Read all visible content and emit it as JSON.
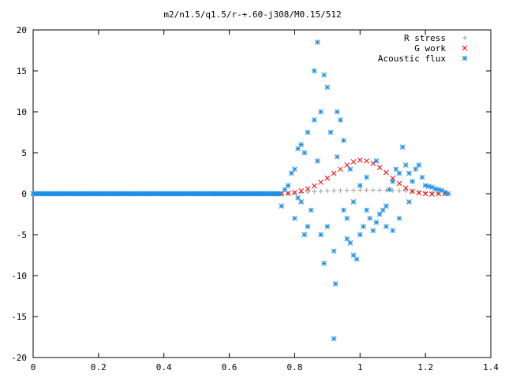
{
  "chart_data": {
    "type": "scatter",
    "title": "m2/n1.5/q1.5/r-+.60-j308/M0.15/512",
    "xlabel": "",
    "ylabel": "",
    "xlim": [
      0,
      1.4
    ],
    "ylim": [
      -20,
      20
    ],
    "x_ticks": [
      0,
      0.2,
      0.4,
      0.6,
      0.8,
      1,
      1.2,
      1.4
    ],
    "x_tick_labels": [
      "0",
      "0.2",
      "0.4",
      "0.6",
      "0.8",
      "1",
      "1.2",
      "1.4"
    ],
    "y_ticks": [
      -20,
      -15,
      -10,
      -5,
      0,
      5,
      10,
      15,
      20
    ],
    "y_tick_labels": [
      "-20",
      "-15",
      "-10",
      "-5",
      "0",
      "5",
      "10",
      "15",
      "20"
    ],
    "grid": false,
    "legend_position": "top-right",
    "series": [
      {
        "name": "R stress",
        "marker": "plus",
        "color": "#a0a0a0",
        "points": [
          [
            0.76,
            0.0
          ],
          [
            0.78,
            0.05
          ],
          [
            0.8,
            0.1
          ],
          [
            0.82,
            0.15
          ],
          [
            0.84,
            0.2
          ],
          [
            0.86,
            0.25
          ],
          [
            0.88,
            0.3
          ],
          [
            0.9,
            0.35
          ],
          [
            0.92,
            0.38
          ],
          [
            0.94,
            0.4
          ],
          [
            0.96,
            0.42
          ],
          [
            0.98,
            0.43
          ],
          [
            1.0,
            0.44
          ],
          [
            1.02,
            0.44
          ],
          [
            1.04,
            0.44
          ],
          [
            1.06,
            0.43
          ],
          [
            1.08,
            0.42
          ],
          [
            1.1,
            0.4
          ],
          [
            1.12,
            0.37
          ],
          [
            1.14,
            0.33
          ],
          [
            1.16,
            0.28
          ],
          [
            1.18,
            0.22
          ],
          [
            1.2,
            0.16
          ],
          [
            1.22,
            0.1
          ],
          [
            1.24,
            0.05
          ],
          [
            1.26,
            0.02
          ]
        ]
      },
      {
        "name": "G work",
        "marker": "cross",
        "color": "#ff0000",
        "points": [
          [
            0.76,
            0.0
          ],
          [
            0.78,
            0.05
          ],
          [
            0.8,
            0.15
          ],
          [
            0.82,
            0.35
          ],
          [
            0.84,
            0.6
          ],
          [
            0.86,
            0.95
          ],
          [
            0.88,
            1.4
          ],
          [
            0.9,
            1.9
          ],
          [
            0.92,
            2.5
          ],
          [
            0.94,
            3.0
          ],
          [
            0.96,
            3.5
          ],
          [
            0.98,
            3.9
          ],
          [
            1.0,
            4.1
          ],
          [
            1.02,
            4.0
          ],
          [
            1.04,
            3.7
          ],
          [
            1.06,
            3.2
          ],
          [
            1.08,
            2.6
          ],
          [
            1.1,
            1.9
          ],
          [
            1.12,
            1.25
          ],
          [
            1.14,
            0.7
          ],
          [
            1.16,
            0.3
          ],
          [
            1.18,
            0.1
          ],
          [
            1.2,
            0.0
          ],
          [
            1.22,
            -0.05
          ],
          [
            1.24,
            0.0
          ],
          [
            1.26,
            0.0
          ]
        ]
      },
      {
        "name": "Acoustic flux",
        "marker": "star",
        "color": "#1e8ee6",
        "points": [
          [
            0.0,
            0.0
          ],
          [
            0.05,
            0.0
          ],
          [
            0.1,
            0.0
          ],
          [
            0.15,
            0.0
          ],
          [
            0.2,
            0.0
          ],
          [
            0.25,
            0.0
          ],
          [
            0.3,
            0.0
          ],
          [
            0.35,
            0.0
          ],
          [
            0.4,
            0.0
          ],
          [
            0.45,
            0.0
          ],
          [
            0.5,
            0.0
          ],
          [
            0.55,
            0.0
          ],
          [
            0.6,
            0.0
          ],
          [
            0.65,
            0.0
          ],
          [
            0.7,
            0.0
          ],
          [
            0.74,
            0.0
          ],
          [
            0.76,
            -1.5
          ],
          [
            0.77,
            0.5
          ],
          [
            0.78,
            1.0
          ],
          [
            0.79,
            2.5
          ],
          [
            0.8,
            3.0
          ],
          [
            0.81,
            5.5
          ],
          [
            0.82,
            6.0
          ],
          [
            0.83,
            5.0
          ],
          [
            0.81,
            -0.5
          ],
          [
            0.82,
            -1.0
          ],
          [
            0.8,
            -3.0
          ],
          [
            0.83,
            -5.0
          ],
          [
            0.85,
            -2.0
          ],
          [
            0.84,
            -4.0
          ],
          [
            0.84,
            7.5
          ],
          [
            0.86,
            9.0
          ],
          [
            0.86,
            15.0
          ],
          [
            0.87,
            18.5
          ],
          [
            0.89,
            14.5
          ],
          [
            0.9,
            13.0
          ],
          [
            0.88,
            10.0
          ],
          [
            0.87,
            4.0
          ],
          [
            0.88,
            -5.0
          ],
          [
            0.89,
            -8.5
          ],
          [
            0.9,
            -4.0
          ],
          [
            0.92,
            -7.0
          ],
          [
            0.925,
            -11.0
          ],
          [
            0.92,
            -17.7
          ],
          [
            0.93,
            10.0
          ],
          [
            0.94,
            9.0
          ],
          [
            0.91,
            7.5
          ],
          [
            0.95,
            6.5
          ],
          [
            0.93,
            4.5
          ],
          [
            0.95,
            -2.0
          ],
          [
            0.96,
            -3.0
          ],
          [
            0.97,
            -6.0
          ],
          [
            0.98,
            -7.5
          ],
          [
            0.99,
            -8.0
          ],
          [
            1.0,
            -5.0
          ],
          [
            1.01,
            -4.0
          ],
          [
            1.02,
            -2.0
          ],
          [
            1.03,
            -3.0
          ],
          [
            1.04,
            -4.5
          ],
          [
            1.05,
            -3.5
          ],
          [
            1.06,
            -2.5
          ],
          [
            1.07,
            -2.0
          ],
          [
            1.08,
            -1.5
          ],
          [
            1.09,
            0.5
          ],
          [
            1.1,
            1.5
          ],
          [
            1.11,
            3.0
          ],
          [
            1.12,
            2.5
          ],
          [
            1.13,
            5.7
          ],
          [
            1.14,
            3.5
          ],
          [
            1.15,
            2.5
          ],
          [
            1.16,
            1.5
          ],
          [
            1.17,
            3.0
          ],
          [
            1.18,
            3.5
          ],
          [
            1.19,
            2.0
          ],
          [
            1.2,
            1.0
          ],
          [
            1.21,
            0.9
          ],
          [
            1.22,
            0.8
          ],
          [
            1.23,
            0.6
          ],
          [
            1.24,
            0.5
          ],
          [
            1.25,
            0.4
          ],
          [
            1.26,
            0.2
          ],
          [
            1.27,
            0.0
          ],
          [
            0.97,
            3.0
          ],
          [
            1.0,
            1.0
          ],
          [
            1.02,
            2.0
          ],
          [
            1.05,
            4.0
          ],
          [
            1.08,
            -4.0
          ],
          [
            1.1,
            -4.5
          ],
          [
            1.12,
            -3.0
          ],
          [
            1.15,
            -1.0
          ],
          [
            0.98,
            -1.0
          ],
          [
            0.96,
            -5.5
          ]
        ]
      }
    ]
  }
}
